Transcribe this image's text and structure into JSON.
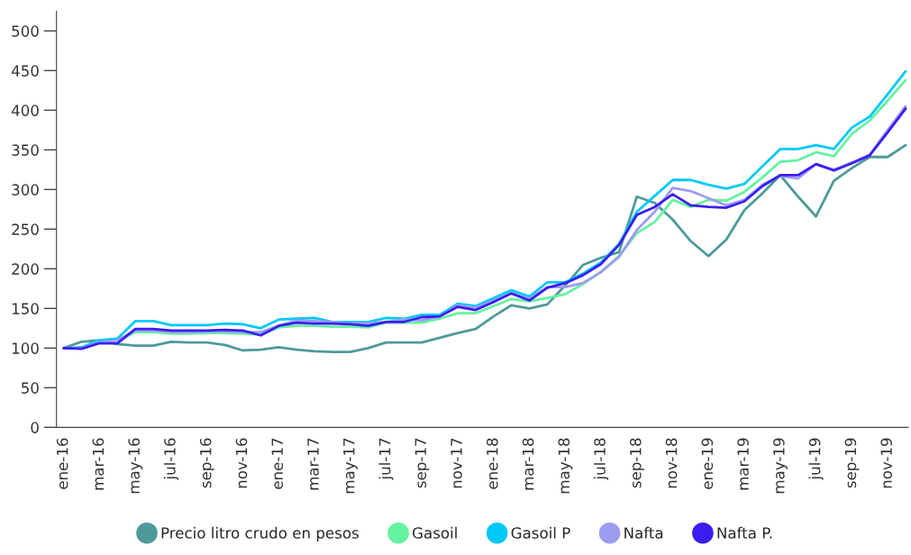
{
  "chart_data": {
    "type": "line",
    "categories": [
      "ene-16",
      null,
      "mar-16",
      null,
      "may-16",
      null,
      "jul-16",
      null,
      "sep-16",
      null,
      "nov-16",
      null,
      "ene-17",
      null,
      "mar-17",
      null,
      "may-17",
      null,
      "jul-17",
      null,
      "sep-17",
      null,
      "nov-17",
      null,
      "ene-18",
      null,
      "mar-18",
      null,
      "may-18",
      null,
      "jul-18",
      null,
      "sep-18",
      null,
      "nov-18",
      null,
      "ene-19",
      null,
      "mar-19",
      null,
      "may-19",
      null,
      "jul-19",
      null,
      "sep-19",
      null,
      "nov-19",
      null
    ],
    "series": [
      {
        "name": "Precio litro crudo en pesos",
        "color": "#4e9a9a",
        "values": [
          100,
          108,
          110,
          105,
          103,
          103,
          108,
          107,
          107,
          104,
          97,
          98,
          101,
          98,
          96,
          95,
          95,
          100,
          107,
          107,
          107,
          113,
          119,
          124,
          140,
          154,
          150,
          155,
          179,
          205,
          214,
          221,
          291,
          283,
          262,
          235,
          216,
          237,
          274,
          295,
          318,
          291,
          266,
          311,
          327,
          341,
          341,
          356
        ]
      },
      {
        "name": "Gasoil",
        "color": "#66f2a0",
        "values": [
          100,
          100,
          110,
          109,
          120,
          120,
          118,
          118,
          119,
          119,
          118,
          117,
          126,
          128,
          128,
          127,
          127,
          126,
          132,
          132,
          132,
          137,
          144,
          144,
          153,
          162,
          159,
          163,
          168,
          181,
          196,
          216,
          245,
          259,
          287,
          278,
          287,
          286,
          297,
          315,
          335,
          337,
          347,
          342,
          370,
          387,
          412,
          438
        ]
      },
      {
        "name": "Gasoil P",
        "color": "#00c8f8",
        "values": [
          100,
          101,
          110,
          112,
          134,
          134,
          129,
          129,
          129,
          131,
          130,
          125,
          136,
          137,
          138,
          133,
          133,
          133,
          138,
          137,
          142,
          142,
          156,
          153,
          163,
          173,
          165,
          183,
          183,
          194,
          208,
          231,
          272,
          292,
          312,
          312,
          306,
          301,
          307,
          329,
          351,
          351,
          356,
          351,
          378,
          392,
          420,
          449
        ]
      },
      {
        "name": "Nafta",
        "color": "#9c9cf0",
        "values": [
          100,
          100,
          107,
          110,
          122,
          122,
          120,
          120,
          121,
          121,
          120,
          120,
          128,
          135,
          134,
          133,
          131,
          131,
          133,
          136,
          135,
          140,
          154,
          151,
          160,
          169,
          162,
          177,
          177,
          182,
          196,
          215,
          249,
          272,
          302,
          298,
          289,
          280,
          287,
          306,
          317,
          314,
          332,
          325,
          334,
          344,
          375,
          405
        ]
      },
      {
        "name": "Nafta P.",
        "color": "#3a1ef0",
        "values": [
          100,
          99,
          106,
          106,
          124,
          124,
          122,
          122,
          122,
          123,
          122,
          116,
          128,
          132,
          131,
          131,
          130,
          128,
          133,
          133,
          139,
          140,
          152,
          148,
          158,
          169,
          160,
          176,
          182,
          192,
          206,
          230,
          268,
          278,
          294,
          280,
          278,
          277,
          285,
          304,
          318,
          318,
          332,
          324,
          333,
          343,
          372,
          402
        ]
      }
    ],
    "ylim": [
      0,
      525
    ],
    "yticks": [
      0,
      50,
      100,
      150,
      200,
      250,
      300,
      350,
      400,
      450,
      500
    ],
    "grid": false,
    "legend": "bottom",
    "marker": "none",
    "line_style": "solid"
  }
}
